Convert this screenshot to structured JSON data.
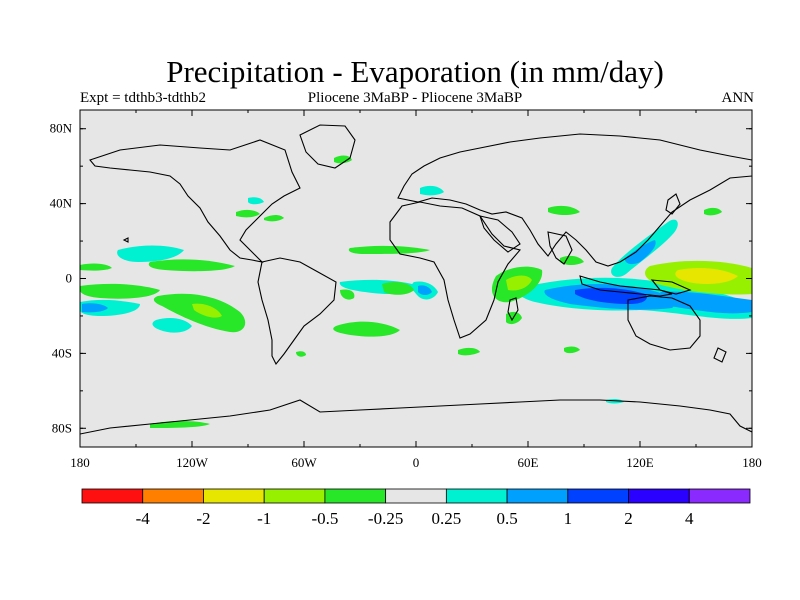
{
  "title": "Precipitation - Evaporation (in mm/day)",
  "subtitle_left": "Expt = tdthb3-tdthb2",
  "subtitle_center": "Pliocene   3MaBP - Pliocene   3MaBP",
  "subtitle_right": "ANN",
  "axes": {
    "x_ticks": [
      "180",
      "120W",
      "60W",
      "0",
      "60E",
      "120E",
      "180"
    ],
    "y_ticks": [
      "80N",
      "40N",
      "0",
      "40S",
      "80S"
    ]
  },
  "colorbar": {
    "labels": [
      "-4",
      "-2",
      "-1",
      "-0.5",
      "-0.25",
      "0.25",
      "0.5",
      "1",
      "2",
      "4"
    ],
    "colors": [
      "#ff1010",
      "#ff8000",
      "#e6e600",
      "#96f000",
      "#28e628",
      "#e6e6e6",
      "#00f0d2",
      "#00a0ff",
      "#0040ff",
      "#2a00ff",
      "#8a2aff"
    ]
  },
  "map_colors": {
    "background": "#e6e6e6",
    "coastline": "#000000"
  }
}
